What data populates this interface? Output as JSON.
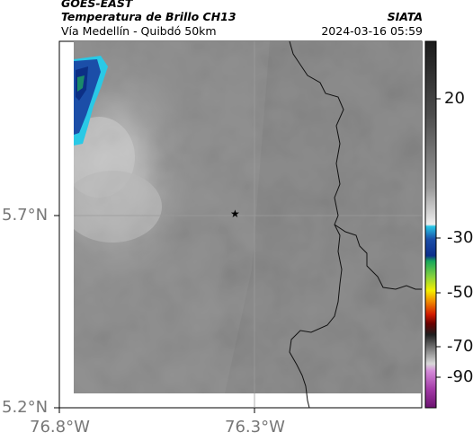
{
  "header": {
    "satellite": "GOES-EAST",
    "product": "Temperatura de Brillo CH13",
    "location": "Vía Medellín - Quibdó 50km",
    "org": "SIATA",
    "datetime": "2024-03-16 05:59"
  },
  "axes": {
    "y_ticks": [
      "5.7°N",
      "5.2°N"
    ],
    "x_ticks": [
      "76.8°W",
      "76.3°W"
    ]
  },
  "colorbar": {
    "labels": [
      "20",
      "-30",
      "-50",
      "-70",
      "-90"
    ]
  },
  "marker": {
    "symbol": "★"
  },
  "colors": {
    "cold_cloud_blue": "#1c4fae",
    "cyan": "#29c8e8",
    "background_gray": "#7a7a7a",
    "border_line": "#111111"
  }
}
